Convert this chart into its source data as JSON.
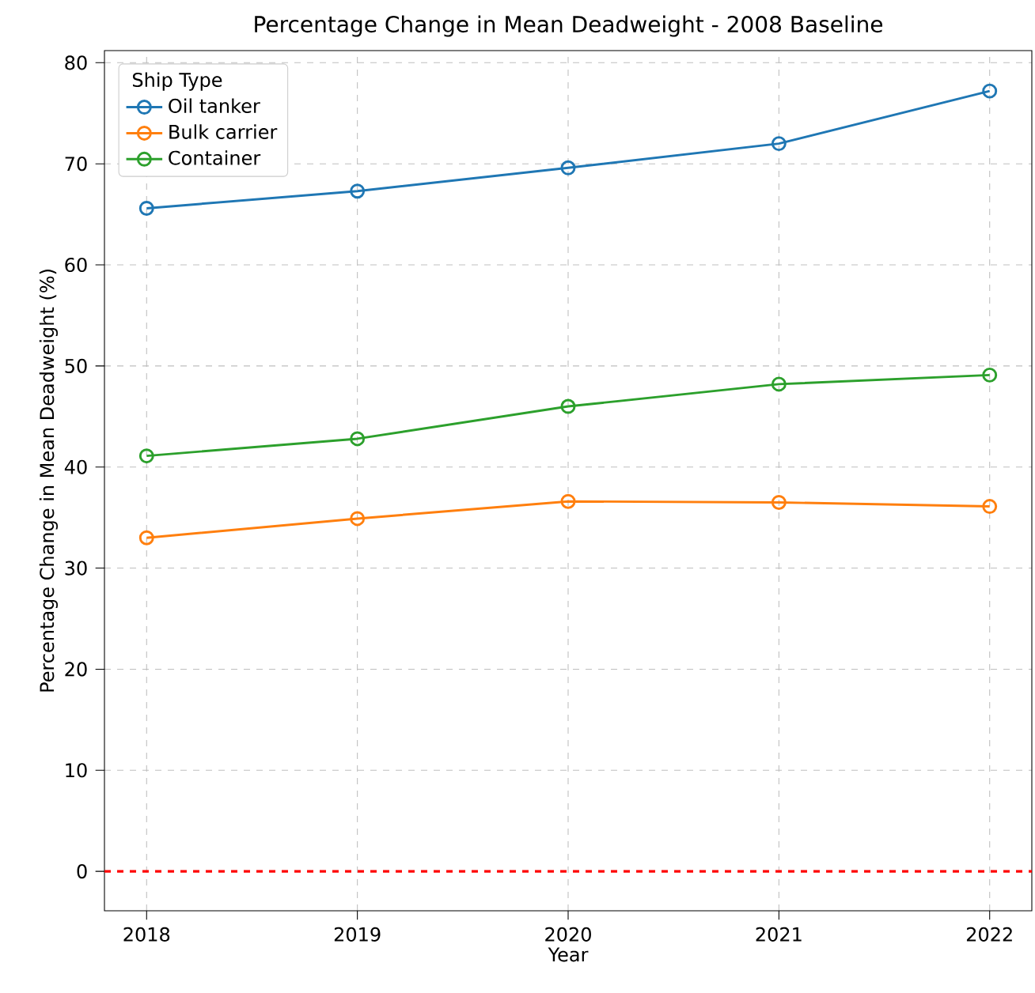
{
  "chart_data": {
    "type": "line",
    "title": "Percentage Change in Mean Deadweight - 2008 Baseline",
    "xlabel": "Year",
    "ylabel": "Percentage Change in Mean Deadweight (%)",
    "legend_title": "Ship Type",
    "x": [
      2018,
      2019,
      2020,
      2021,
      2022
    ],
    "series": [
      {
        "name": "Oil tanker",
        "color": "#1f77b4",
        "values": [
          65.6,
          67.3,
          69.6,
          72.0,
          77.2
        ]
      },
      {
        "name": "Bulk carrier",
        "color": "#ff7f0e",
        "values": [
          33.0,
          34.9,
          36.6,
          36.5,
          36.1
        ]
      },
      {
        "name": "Container",
        "color": "#2ca02c",
        "values": [
          41.1,
          42.8,
          46.0,
          48.2,
          49.1
        ]
      }
    ],
    "xlim": [
      2017.8,
      2022.2
    ],
    "ylim": [
      -3.9,
      81.2
    ],
    "xticks": [
      2018,
      2019,
      2020,
      2021,
      2022
    ],
    "yticks": [
      0,
      10,
      20,
      30,
      40,
      50,
      60,
      70,
      80
    ],
    "grid": true,
    "legend": "top left",
    "marker": "circle",
    "line_style": "solid",
    "ref_lines": [
      {
        "axis": "y",
        "value": 0,
        "color": "#ff0000",
        "line_style": "dashed"
      }
    ]
  }
}
